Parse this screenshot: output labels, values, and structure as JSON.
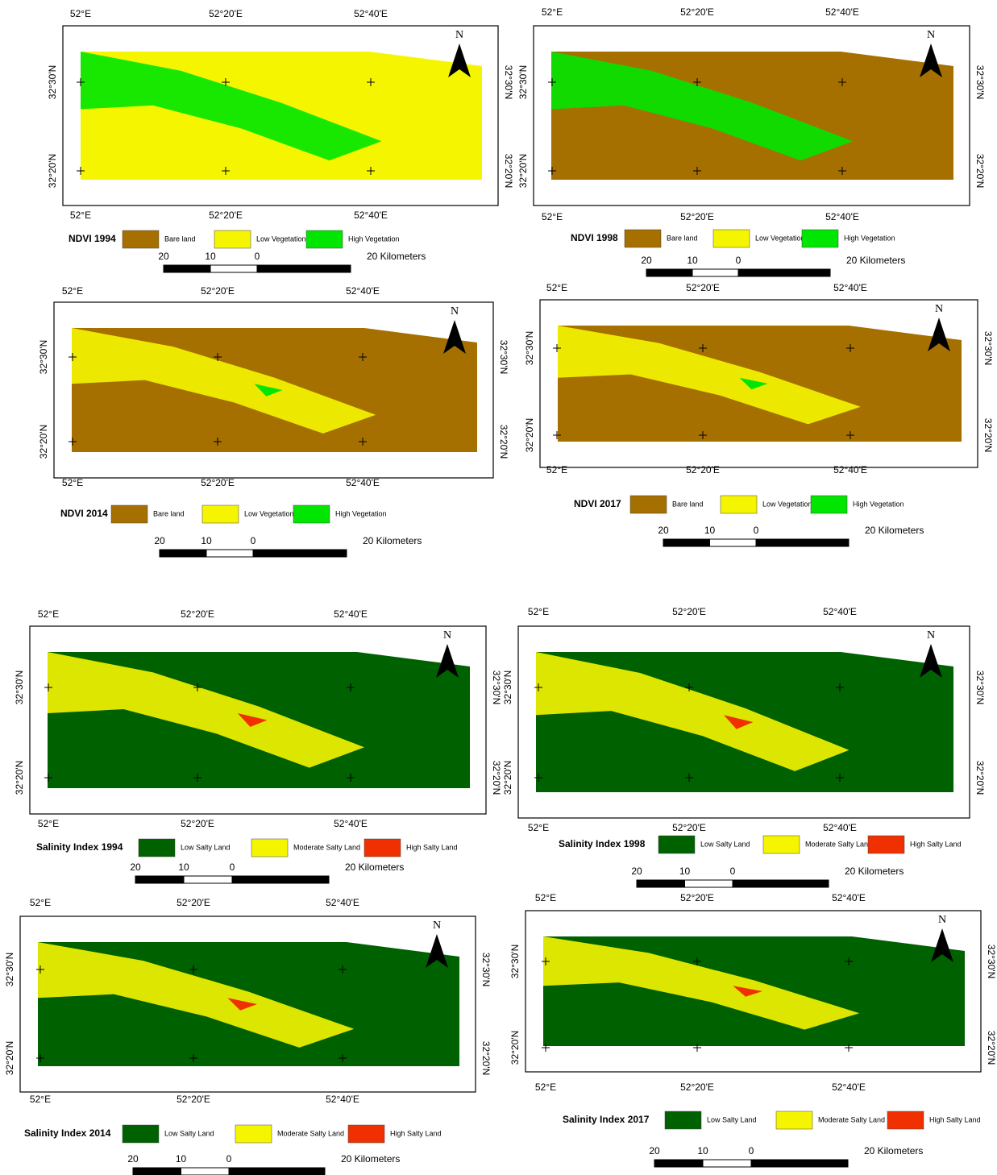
{
  "panels": [
    {
      "title": "NDVI 1994",
      "north": "N",
      "top_labels": [
        "52°E",
        "52°20'E",
        "52°40'E"
      ],
      "bottom_labels": [
        "52°E",
        "52°20'E",
        "52°40'E"
      ],
      "left_labels": [
        "32°30'N",
        "32°20'N"
      ],
      "right_labels": [
        "32°30'N",
        "32°20'N"
      ],
      "legend": [
        {
          "label": "Bare land",
          "color": "#a57000"
        },
        {
          "label": "Low Vegetation",
          "color": "#f5f500"
        },
        {
          "label": "High Vegetation",
          "color": "#00e600"
        }
      ],
      "scale": [
        "20",
        "10",
        "0",
        "20 Kilometers"
      ]
    },
    {
      "title": "NDVI 1998",
      "north": "N",
      "top_labels": [
        "52°E",
        "52°20'E",
        "52°40'E"
      ],
      "bottom_labels": [
        "52°E",
        "52°20'E",
        "52°40'E"
      ],
      "left_labels": [
        "32°30'N",
        "32°20'N"
      ],
      "right_labels": [
        "32°30'N",
        "32°20'N"
      ],
      "legend": [
        {
          "label": "Bare land",
          "color": "#a57000"
        },
        {
          "label": "Low Vegetation",
          "color": "#f5f500"
        },
        {
          "label": "High Vegetation",
          "color": "#00e600"
        }
      ],
      "scale": [
        "20",
        "10",
        "0",
        "20 Kilometers"
      ]
    },
    {
      "title": "NDVI 2014",
      "north": "N",
      "top_labels": [
        "52°E",
        "52°20'E",
        "52°40'E"
      ],
      "bottom_labels": [
        "52°E",
        "52°20'E",
        "52°40'E"
      ],
      "left_labels": [
        "32°30'N",
        "32°20'N"
      ],
      "right_labels": [
        "32°30'N",
        "32°20'N"
      ],
      "legend": [
        {
          "label": "Bare land",
          "color": "#a57000"
        },
        {
          "label": "Low Vegetation",
          "color": "#f5f500"
        },
        {
          "label": "High Vegetation",
          "color": "#00e600"
        }
      ],
      "scale": [
        "20",
        "10",
        "0",
        "20 Kilometers"
      ]
    },
    {
      "title": "NDVI 2017",
      "north": "N",
      "top_labels": [
        "52°E",
        "52°20'E",
        "52°40'E"
      ],
      "bottom_labels": [
        "52°E",
        "52°20'E",
        "52°40'E"
      ],
      "left_labels": [
        "32°30'N",
        "32°20'N"
      ],
      "right_labels": [
        "32°30'N",
        "32°20'N"
      ],
      "legend": [
        {
          "label": "Bare land",
          "color": "#a57000"
        },
        {
          "label": "Low Vegetation",
          "color": "#f5f500"
        },
        {
          "label": "High Vegetation",
          "color": "#00e600"
        }
      ],
      "scale": [
        "20",
        "10",
        "0",
        "20 Kilometers"
      ]
    },
    {
      "title": "Salinity Index  1994",
      "north": "N",
      "top_labels": [
        "52°E",
        "52°20'E",
        "52°40'E"
      ],
      "bottom_labels": [
        "52°E",
        "52°20'E",
        "52°40'E"
      ],
      "left_labels": [
        "32°30'N",
        "32°20'N"
      ],
      "right_labels": [
        "32°30'N",
        "32°20'N"
      ],
      "legend": [
        {
          "label": "Low Salty Land",
          "color": "#006100"
        },
        {
          "label": "Moderate Salty Land",
          "color": "#f5f500"
        },
        {
          "label": "High Salty Land",
          "color": "#f03000"
        }
      ],
      "scale": [
        "20",
        "10",
        "0",
        "20 Kilometers"
      ]
    },
    {
      "title": "Salinity Index 1998",
      "north": "N",
      "top_labels": [
        "52°E",
        "52°20'E",
        "52°40'E"
      ],
      "bottom_labels": [
        "52°E",
        "52°20'E",
        "52°40'E"
      ],
      "left_labels": [
        "32°30'N",
        "32°20'N"
      ],
      "right_labels": [
        "32°30'N",
        "32°20'N"
      ],
      "legend": [
        {
          "label": "Low Salty Land",
          "color": "#006100"
        },
        {
          "label": "Moderate Salty Land",
          "color": "#f5f500"
        },
        {
          "label": "High Salty Land",
          "color": "#f03000"
        }
      ],
      "scale": [
        "20",
        "10",
        "0",
        "20 Kilometers"
      ]
    },
    {
      "title": "Salinity Index 2014",
      "north": "N",
      "top_labels": [
        "52°E",
        "52°20'E",
        "52°40'E"
      ],
      "bottom_labels": [
        "52°E",
        "52°20'E",
        "52°40'E"
      ],
      "left_labels": [
        "32°30'N",
        "32°20'N"
      ],
      "right_labels": [
        "32°30'N",
        "32°20'N"
      ],
      "legend": [
        {
          "label": "Low Salty Land",
          "color": "#006100"
        },
        {
          "label": "Moderate Salty Land",
          "color": "#f5f500"
        },
        {
          "label": "High Salty Land",
          "color": "#f03000"
        }
      ],
      "scale": [
        "20",
        "10",
        "0",
        "20 Kilometers"
      ]
    },
    {
      "title": "Salinity Index  2017",
      "north": "N",
      "top_labels": [
        "52°E",
        "52°20'E",
        "52°40'E"
      ],
      "bottom_labels": [
        "52°E",
        "52°20'E",
        "52°40'E"
      ],
      "left_labels": [
        "32°30'N",
        "32°20'N"
      ],
      "right_labels": [
        "32°30'N",
        "32°20'N"
      ],
      "legend": [
        {
          "label": "Low Salty Land",
          "color": "#006100"
        },
        {
          "label": "Moderate Salty Land",
          "color": "#f5f500"
        },
        {
          "label": "High Salty Land",
          "color": "#f03000"
        }
      ],
      "scale": [
        "20",
        "10",
        "0",
        "20 Kilometers"
      ]
    }
  ]
}
